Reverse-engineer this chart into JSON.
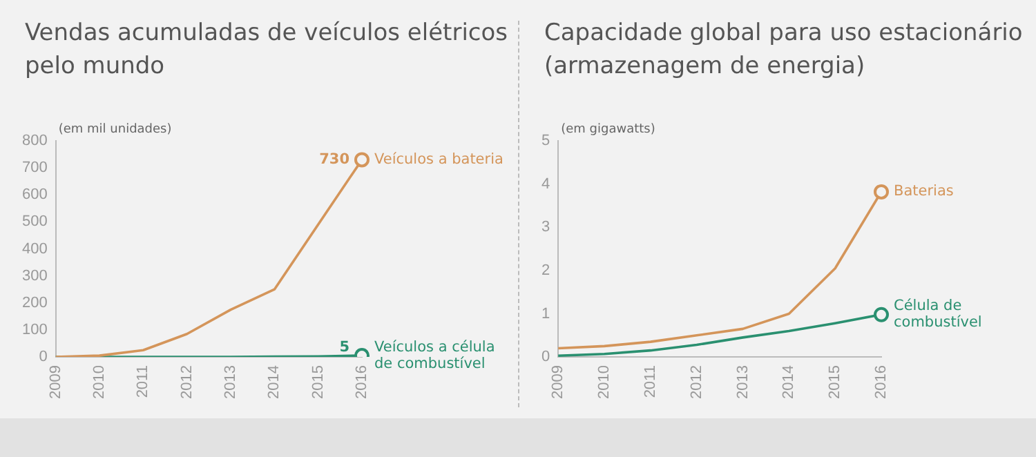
{
  "chart_data": [
    {
      "type": "line",
      "title": "Vendas acumuladas de veículos elétricos pelo mundo",
      "ylabel": "(em mil unidades)",
      "categories": [
        "2009",
        "2010",
        "2011",
        "2012",
        "2013",
        "2014",
        "2015",
        "2016"
      ],
      "ylim": [
        0,
        800
      ],
      "yticks": [
        0,
        100,
        200,
        300,
        400,
        500,
        600,
        700,
        800
      ],
      "grid": false,
      "legend": false,
      "series": [
        {
          "name": "Veículos a bateria",
          "color": "#d4955a",
          "values": [
            0,
            5,
            25,
            85,
            175,
            250,
            490,
            730
          ],
          "value_labels": [
            null,
            null,
            null,
            null,
            null,
            null,
            null,
            "730"
          ]
        },
        {
          "name": "Veículos a célula de combustível",
          "color": "#2a9070",
          "values": [
            0,
            0,
            0,
            0,
            0,
            1,
            2,
            5
          ],
          "value_labels": [
            null,
            null,
            null,
            null,
            null,
            null,
            null,
            "5"
          ]
        }
      ]
    },
    {
      "type": "line",
      "title": "Capacidade global para uso estacionário (armazenagem de energia)",
      "ylabel": "(em gigawatts)",
      "categories": [
        "2009",
        "2010",
        "2011",
        "2012",
        "2013",
        "2014",
        "2015",
        "2016"
      ],
      "ylim": [
        0,
        5
      ],
      "yticks": [
        0,
        1,
        2,
        3,
        4,
        5
      ],
      "grid": false,
      "legend": false,
      "series": [
        {
          "name": "Baterias",
          "color": "#d4955a",
          "values": [
            0.2,
            0.25,
            0.35,
            0.5,
            0.65,
            1.0,
            2.05,
            3.82
          ]
        },
        {
          "name": "Célula de combustível",
          "color": "#2a9070",
          "values": [
            0.03,
            0.07,
            0.15,
            0.28,
            0.45,
            0.6,
            0.78,
            0.98
          ]
        }
      ]
    }
  ]
}
